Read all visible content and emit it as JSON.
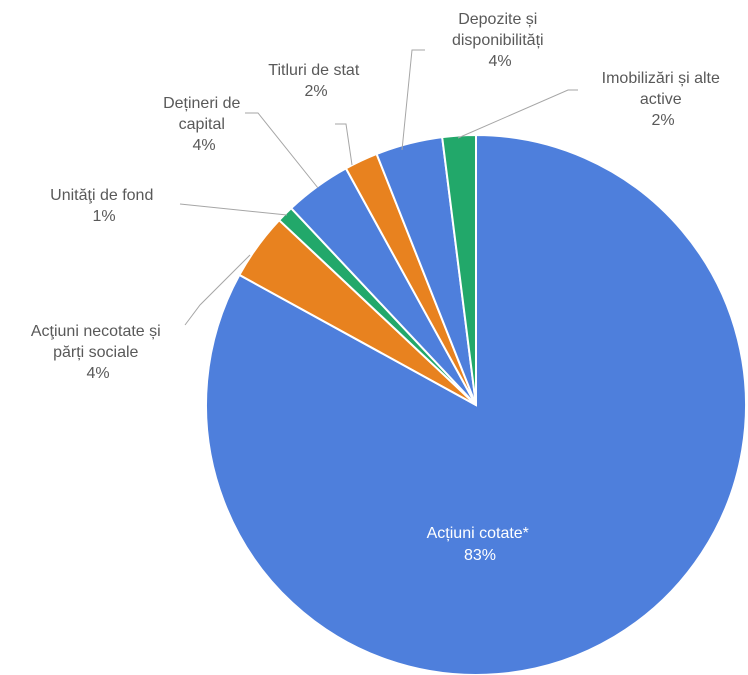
{
  "chart_data": {
    "type": "pie",
    "title": "",
    "slices": [
      {
        "label": "Acțiuni cotate*",
        "value": 83,
        "display": "83%",
        "color": "#4e7fdc"
      },
      {
        "label": "Acţiuni necotate și părți sociale",
        "value": 4,
        "display": "4%",
        "color": "#e8821f"
      },
      {
        "label": "Unităţi de fond",
        "value": 1,
        "display": "1%",
        "color": "#22a86a"
      },
      {
        "label": "Dețineri de capital",
        "value": 4,
        "display": "4%",
        "color": "#4e7fdc"
      },
      {
        "label": "Titluri de stat",
        "value": 2,
        "display": "2%",
        "color": "#e8821f"
      },
      {
        "label": "Depozite și disponibilități",
        "value": 4,
        "display": "4%",
        "color": "#4e7fdc"
      },
      {
        "label": "Imobilizări și alte active",
        "value": 2,
        "display": "2%",
        "color": "#22a86a"
      }
    ],
    "labels": {
      "s0": {
        "line1": "Acțiuni cotate*",
        "pct": "83%"
      },
      "s1": {
        "line1": "Acţiuni necotate și",
        "line2": "părți sociale",
        "pct": "4%"
      },
      "s2": {
        "line1": "Unităţi de fond",
        "pct": "1%"
      },
      "s3": {
        "line1": "Dețineri de",
        "line2": "capital",
        "pct": "4%"
      },
      "s4": {
        "line1": "Titluri de stat",
        "pct": "2%"
      },
      "s5": {
        "line1": "Depozite și",
        "line2": "disponibilități",
        "pct": "4%"
      },
      "s6": {
        "line1": "Imobilizări și alte",
        "line2": "active",
        "pct": "2%"
      }
    },
    "legend": "none"
  }
}
